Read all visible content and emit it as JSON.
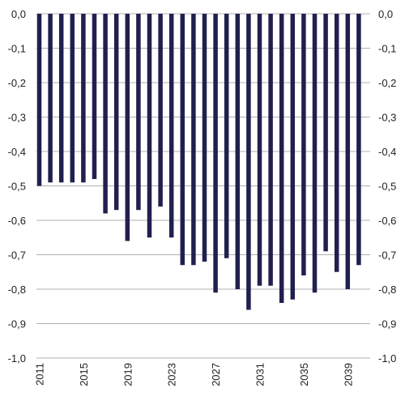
{
  "chart_data": {
    "type": "bar",
    "color": "#20204f",
    "grid": true,
    "gridline_color": "#b0b0b0",
    "ylim": [
      -1.0,
      0.0
    ],
    "y_ticks": [
      0.0,
      -0.1,
      -0.2,
      -0.3,
      -0.4,
      -0.5,
      -0.6,
      -0.7,
      -0.8,
      -0.9,
      -1.0
    ],
    "y_tick_labels": [
      "0,0",
      "-0,1",
      "-0,2",
      "-0,3",
      "-0,4",
      "-0,5",
      "-0,6",
      "-0,7",
      "-0,8",
      "-0,9",
      "-1,0"
    ],
    "y_axis_sides": "both",
    "x_tick_labels": [
      "2011",
      "2015",
      "2019",
      "2023",
      "2027",
      "2031",
      "2035",
      "2039"
    ],
    "categories": [
      "2011",
      "2012",
      "2013",
      "2014",
      "2015",
      "2016",
      "2017",
      "2018",
      "2019",
      "2020",
      "2021",
      "2022",
      "2023",
      "2024",
      "2025",
      "2026",
      "2027",
      "2028",
      "2029",
      "2030",
      "2031",
      "2032",
      "2033",
      "2034",
      "2035",
      "2036",
      "2037",
      "2038",
      "2039",
      "2040"
    ],
    "values": [
      -0.5,
      -0.49,
      -0.49,
      -0.49,
      -0.49,
      -0.48,
      -0.58,
      -0.57,
      -0.66,
      -0.57,
      -0.65,
      -0.56,
      -0.65,
      -0.73,
      -0.73,
      -0.72,
      -0.81,
      -0.71,
      -0.8,
      -0.86,
      -0.79,
      -0.79,
      -0.84,
      -0.83,
      -0.76,
      -0.81,
      -0.69,
      -0.75,
      -0.8,
      -0.73
    ],
    "title": "",
    "xlabel": "",
    "ylabel": ""
  }
}
